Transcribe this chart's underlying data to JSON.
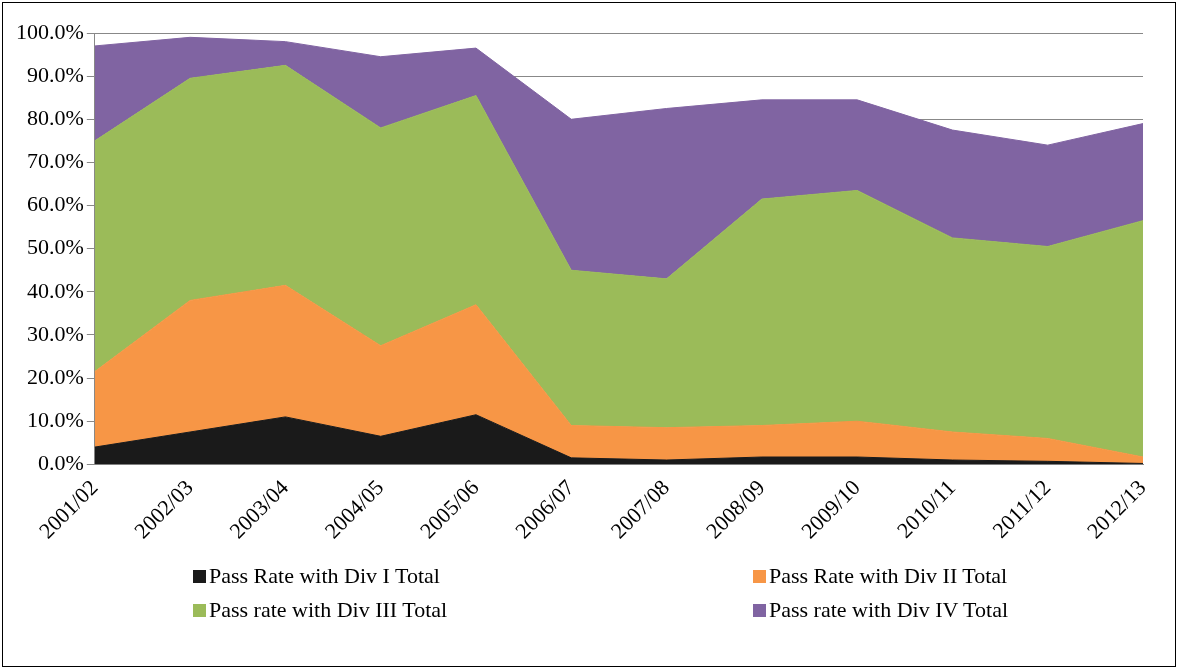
{
  "chart_data": {
    "type": "area",
    "stacked": true,
    "categories": [
      "2001/02",
      "2002/03",
      "2003/04",
      "2004/05",
      "2005/06",
      "2006/07",
      "2007/08",
      "2008/09",
      "2009/10",
      "2010/11",
      "2011/12",
      "2012/13"
    ],
    "series": [
      {
        "name": "Pass Rate with Div I Total",
        "color": "#1a1a1a",
        "values": [
          4.0,
          7.5,
          11.0,
          6.5,
          11.5,
          1.5,
          1.0,
          1.7,
          1.7,
          1.0,
          0.7,
          0.2
        ]
      },
      {
        "name": "Pass Rate with Div II Total",
        "color": "#f79646",
        "values": [
          17.5,
          30.5,
          30.5,
          21.0,
          25.5,
          7.5,
          7.5,
          7.3,
          8.3,
          6.5,
          5.3,
          1.5
        ]
      },
      {
        "name": "Pass rate with Div III Total",
        "color": "#9bbb59",
        "values": [
          53.5,
          51.5,
          51.0,
          50.5,
          48.5,
          36.0,
          34.5,
          52.5,
          53.5,
          45.0,
          44.5,
          54.8
        ]
      },
      {
        "name": "Pass rate with Div IV Total",
        "color": "#8064a2",
        "values": [
          22.0,
          9.5,
          5.5,
          16.5,
          11.0,
          35.0,
          39.5,
          23.0,
          21.0,
          25.0,
          23.5,
          22.5
        ]
      }
    ],
    "ylim": [
      0,
      100
    ],
    "yticks": [
      {
        "value": 0,
        "label": "0.0%"
      },
      {
        "value": 10,
        "label": "10.0%"
      },
      {
        "value": 20,
        "label": "20.0%"
      },
      {
        "value": 30,
        "label": "30.0%"
      },
      {
        "value": 40,
        "label": "40.0%"
      },
      {
        "value": 50,
        "label": "50.0%"
      },
      {
        "value": 60,
        "label": "60.0%"
      },
      {
        "value": 70,
        "label": "70.0%"
      },
      {
        "value": 80,
        "label": "80.0%"
      },
      {
        "value": 90,
        "label": "90.0%"
      },
      {
        "value": 100,
        "label": "100.0%"
      }
    ],
    "grid": "y",
    "legend": "bottom"
  }
}
